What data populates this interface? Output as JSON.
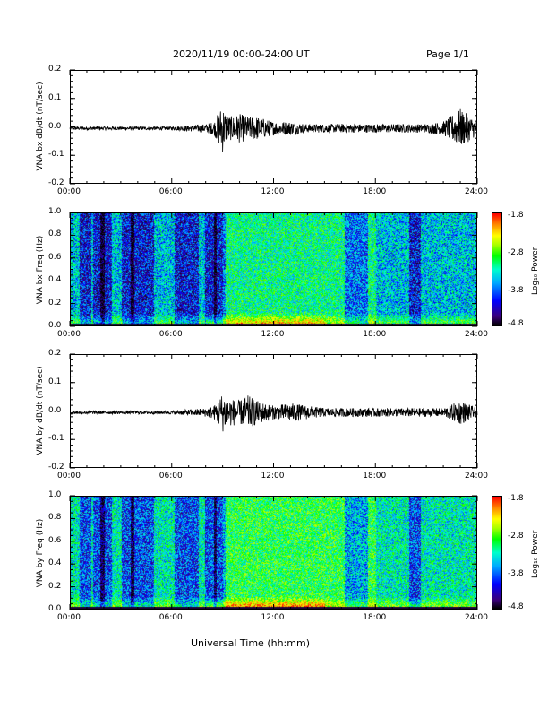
{
  "header": {
    "title": "2020/11/19  00:00-24:00 UT",
    "page": "Page 1/1"
  },
  "xlabel": "Universal Time (hh:mm)",
  "xticks": [
    "00:00",
    "06:00",
    "12:00",
    "18:00",
    "24:00"
  ],
  "colorbar": {
    "label": "Log₁₀ Power",
    "ticks": [
      "-1.8",
      "-2.8",
      "-3.8",
      "-4.8"
    ],
    "colors": [
      "#000000",
      "#3a007a",
      "#0000ff",
      "#00aaff",
      "#00ffcc",
      "#00ff00",
      "#aaff00",
      "#ffff00",
      "#ff8800",
      "#ff0000"
    ]
  },
  "chart_data": [
    {
      "type": "line",
      "ylabel": "VNA bx dB/dt (nT/sec)",
      "xlim": [
        0,
        24
      ],
      "ylim": [
        -0.2,
        0.2
      ],
      "yticks": [
        "0.2",
        "0.1",
        "0.0",
        "-0.1",
        "-0.2"
      ],
      "series": [
        {
          "x": [
            0,
            2,
            4,
            6,
            8,
            8.5,
            9.0,
            9.2,
            9.5,
            10,
            10.5,
            11,
            12,
            13,
            14,
            15,
            16,
            17,
            18,
            19,
            20,
            21,
            22,
            23,
            24
          ],
          "y": [
            0.0,
            0.0,
            0.0,
            0.0,
            0.01,
            0.02,
            0.09,
            0.05,
            0.04,
            0.05,
            0.04,
            0.04,
            0.02,
            0.02,
            0.01,
            0.01,
            0.01,
            0.01,
            0.01,
            0.01,
            0.01,
            0.01,
            0.02,
            0.07,
            0.02
          ]
        }
      ]
    },
    {
      "type": "heatmap",
      "ylabel": "VNA bx Freq (Hz)",
      "xlim": [
        0,
        24
      ],
      "ylim": [
        0.0,
        1.0
      ],
      "yticks": [
        "1.0",
        "0.8",
        "0.6",
        "0.4",
        "0.2",
        "0.0"
      ],
      "clim": [
        -4.8,
        -1.8
      ]
    },
    {
      "type": "line",
      "ylabel": "VNA by dB/dt (nT/sec)",
      "xlim": [
        0,
        24
      ],
      "ylim": [
        -0.2,
        0.2
      ],
      "yticks": [
        "0.2",
        "0.1",
        "0.0",
        "-0.1",
        "-0.2"
      ],
      "series": [
        {
          "x": [
            0,
            2,
            4,
            6,
            8,
            8.5,
            9.0,
            9.3,
            10,
            10.5,
            11,
            12,
            13,
            14,
            15,
            16,
            17,
            18,
            19,
            20,
            21,
            22,
            23,
            24
          ],
          "y": [
            0.0,
            0.0,
            0.0,
            0.0,
            0.01,
            0.02,
            0.07,
            0.05,
            0.04,
            0.06,
            0.04,
            0.02,
            0.03,
            0.02,
            0.01,
            0.01,
            0.01,
            0.01,
            0.01,
            0.01,
            0.01,
            0.01,
            0.04,
            0.01
          ]
        }
      ]
    },
    {
      "type": "heatmap",
      "ylabel": "VNA by Freq (Hz)",
      "xlim": [
        0,
        24
      ],
      "ylim": [
        0.0,
        1.0
      ],
      "yticks": [
        "1.0",
        "0.8",
        "0.6",
        "0.4",
        "0.2",
        "0.0"
      ],
      "clim": [
        -4.8,
        -1.8
      ]
    }
  ]
}
